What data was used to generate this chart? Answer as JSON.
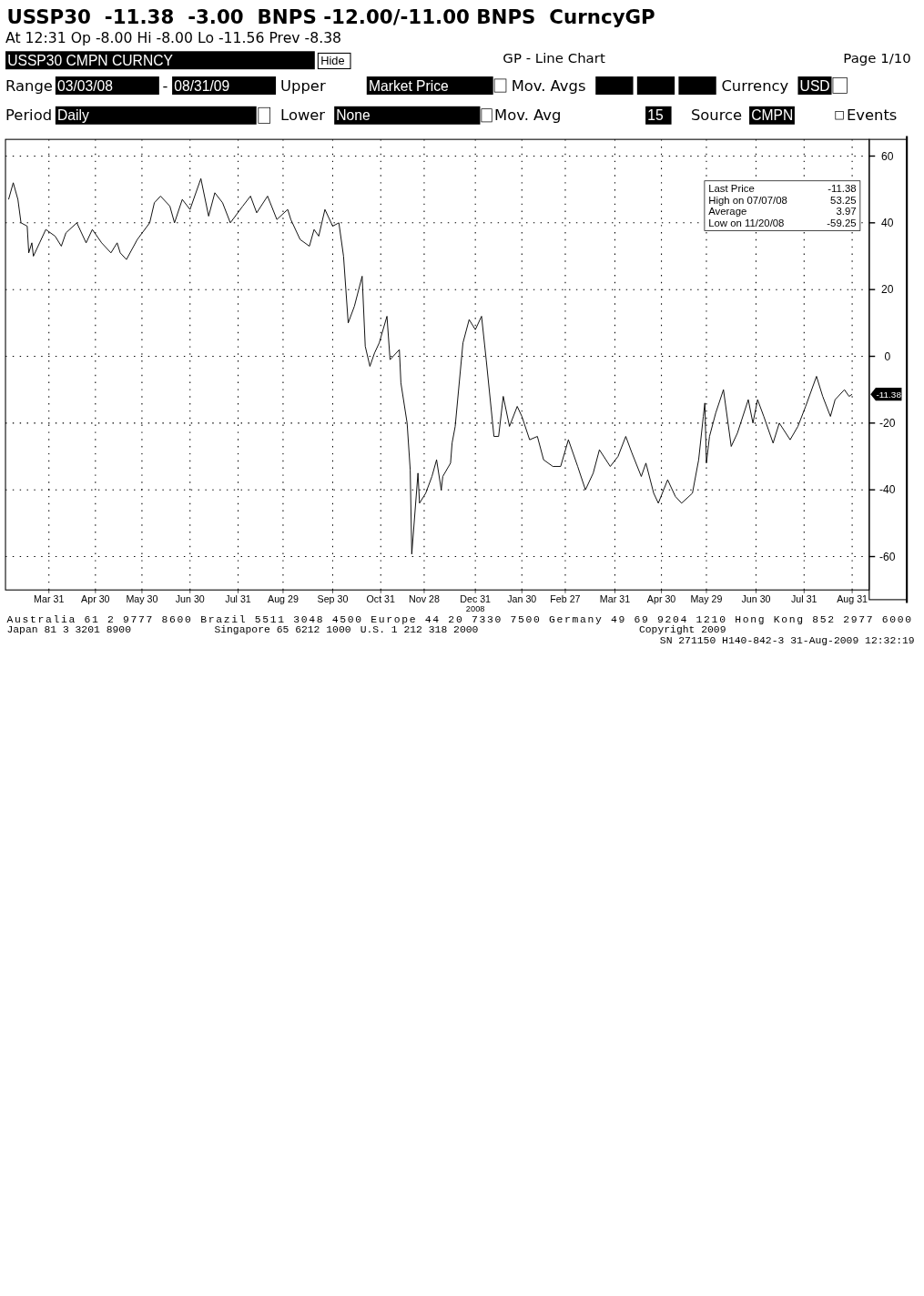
{
  "chart_data": {
    "type": "line",
    "title": "USSP30  -11.38  -3.00  BNPS -12.00/-11.00 BNPS  CurncyGP",
    "subtitle": "At 12:31 Op -8.00 Hi -8.00 Lo -11.56 Prev -8.38",
    "x": [
      "2008-03-05",
      "2008-03-08",
      "2008-03-11",
      "2008-03-13",
      "2008-03-17",
      "2008-03-18",
      "2008-03-20",
      "2008-03-21",
      "2008-03-25",
      "2008-03-29",
      "2008-04-04",
      "2008-04-08",
      "2008-04-11",
      "2008-04-18",
      "2008-04-24",
      "2008-04-28",
      "2008-05-04",
      "2008-05-10",
      "2008-05-14",
      "2008-05-16",
      "2008-05-20",
      "2008-05-27",
      "2008-06-04",
      "2008-06-07",
      "2008-06-11",
      "2008-06-17",
      "2008-06-20",
      "2008-06-25",
      "2008-06-30",
      "2008-07-07",
      "2008-07-12",
      "2008-07-16",
      "2008-07-21",
      "2008-07-26",
      "2008-08-03",
      "2008-08-08",
      "2008-08-12",
      "2008-08-19",
      "2008-08-25",
      "2008-09-01",
      "2008-09-03",
      "2008-09-09",
      "2008-09-15",
      "2008-09-18",
      "2008-09-21",
      "2008-09-25",
      "2008-09-30",
      "2008-10-04",
      "2008-10-07",
      "2008-10-10",
      "2008-10-14",
      "2008-10-19",
      "2008-10-21",
      "2008-10-24",
      "2008-10-27",
      "2008-10-30",
      "2008-11-04",
      "2008-11-06",
      "2008-11-12",
      "2008-11-13",
      "2008-11-17",
      "2008-11-19",
      "2008-11-20",
      "2008-11-24",
      "2008-11-25",
      "2008-11-29",
      "2008-12-03",
      "2008-12-06",
      "2008-12-09",
      "2008-12-10",
      "2008-12-15",
      "2008-12-16",
      "2008-12-18",
      "2008-12-23",
      "2008-12-27",
      "2008-12-31",
      "2009-01-04",
      "2009-01-07",
      "2009-01-12",
      "2009-01-15",
      "2009-01-18",
      "2009-01-22",
      "2009-01-27",
      "2009-01-30",
      "2009-02-04",
      "2009-02-09",
      "2009-02-13",
      "2009-02-19",
      "2009-02-24",
      "2009-03-01",
      "2009-03-07",
      "2009-03-12",
      "2009-03-17",
      "2009-03-21",
      "2009-03-28",
      "2009-04-02",
      "2009-04-07",
      "2009-04-11",
      "2009-04-17",
      "2009-04-20",
      "2009-04-25",
      "2009-04-28",
      "2009-05-04",
      "2009-05-09",
      "2009-05-13",
      "2009-05-20",
      "2009-05-24",
      "2009-05-27",
      "2009-05-28",
      "2009-05-29",
      "2009-05-31",
      "2009-06-04",
      "2009-06-09",
      "2009-06-14",
      "2009-06-18",
      "2009-06-25",
      "2009-06-28",
      "2009-07-01",
      "2009-07-05",
      "2009-07-11",
      "2009-07-15",
      "2009-07-22",
      "2009-07-27",
      "2009-08-01",
      "2009-08-08",
      "2009-08-12",
      "2009-08-17",
      "2009-08-20",
      "2009-08-26",
      "2009-08-29",
      "2009-08-31"
    ],
    "series": [
      {
        "color": "#000000",
        "values": [
          47,
          52,
          47,
          40,
          39,
          31,
          34,
          30,
          34,
          38,
          36,
          33,
          37,
          40,
          34,
          38,
          34,
          31,
          34,
          31,
          29,
          35,
          40,
          46,
          48,
          45,
          40,
          47,
          44,
          53.25,
          42,
          49,
          46,
          40,
          45,
          48,
          43,
          48,
          41,
          44,
          41,
          35,
          33,
          38,
          36,
          44,
          39,
          40,
          30,
          10,
          15,
          24,
          3,
          -3,
          1,
          4,
          12,
          -1,
          2,
          -8,
          -20,
          -34,
          -59.25,
          -35,
          -44,
          -41,
          -36,
          -31,
          -40,
          -36,
          -32,
          -26,
          -21,
          4,
          11,
          8,
          12,
          -1,
          -24,
          -24,
          -12,
          -21,
          -15,
          -18,
          -25,
          -24,
          -31,
          -33,
          -33,
          -25,
          -33,
          -40,
          -35,
          -28,
          -33,
          -30,
          -24,
          -29,
          -36,
          -32,
          -41,
          -44,
          -37,
          -42,
          -44,
          -41,
          -31,
          -18,
          -14,
          -32,
          -24,
          -17,
          -10,
          -27,
          -23,
          -13,
          -20,
          -13,
          -18,
          -26,
          -20,
          -25,
          -21,
          -15,
          -6,
          -12,
          -18,
          -13,
          -10,
          -12,
          -11.38
        ]
      }
    ],
    "xlim": [
      "2008-03-03",
      "2009-09-11"
    ],
    "xticks": [
      {
        "value": "2008-03-31",
        "label": "Mar 31"
      },
      {
        "value": "2008-04-30",
        "label": "Apr 30"
      },
      {
        "value": "2008-05-30",
        "label": "May 30"
      },
      {
        "value": "2008-06-30",
        "label": "Jun 30"
      },
      {
        "value": "2008-07-31",
        "label": "Jul 31"
      },
      {
        "value": "2008-08-29",
        "label": "Aug 29"
      },
      {
        "value": "2008-09-30",
        "label": "Sep 30"
      },
      {
        "value": "2008-10-31",
        "label": "Oct 31"
      },
      {
        "value": "2008-11-28",
        "label": "Nov 28"
      },
      {
        "value": "2008-12-31",
        "label": "Dec 31"
      },
      {
        "value": "2009-01-30",
        "label": "Jan 30"
      },
      {
        "value": "2009-02-27",
        "label": "Feb 27"
      },
      {
        "value": "2009-03-31",
        "label": "Mar 31"
      },
      {
        "value": "2009-04-30",
        "label": "Apr 30"
      },
      {
        "value": "2009-05-29",
        "label": "May 29"
      },
      {
        "value": "2009-06-30",
        "label": "Jun 30"
      },
      {
        "value": "2009-07-31",
        "label": "Jul 31"
      },
      {
        "value": "2009-08-31",
        "label": "Aug 31"
      }
    ],
    "ylim": [
      -70,
      65
    ],
    "yticks": [
      -60,
      -40,
      -20,
      0,
      20,
      40,
      60
    ],
    "grid": true,
    "annotations": [
      "USSP30 CMPN CURNCY",
      "Hide",
      "GP - Line Chart",
      "Page 1/10",
      "Range",
      "03/03/08",
      "-",
      "08/31/09",
      "Upper",
      "Market Price",
      "Mov. Avgs",
      "Currency",
      "USD",
      "Period",
      "Daily",
      "Lower",
      "None",
      "Mov. Avg",
      "15",
      "Source",
      "CMPN",
      "Events",
      "Last Price",
      "-11.38",
      "High on 07/07/08",
      "53.25",
      "Average",
      "3.97",
      "Low on 11/20/08",
      "-59.25",
      "2008",
      "-11.38",
      "Australia 61 2 9777 8600 Brazil 5511 3048 4500 Europe 44 20 7330 7500 Germany 49 69 9204 1210 Hong Kong 852 2977 6000",
      "Japan 81 3 3201 8900",
      "Singapore 65 6212 1000",
      "U.S. 1 212 318 2000",
      "Copyright 2009",
      "SN 271150 H140-842-3 31-Aug-2009 12:32:19"
    ]
  }
}
